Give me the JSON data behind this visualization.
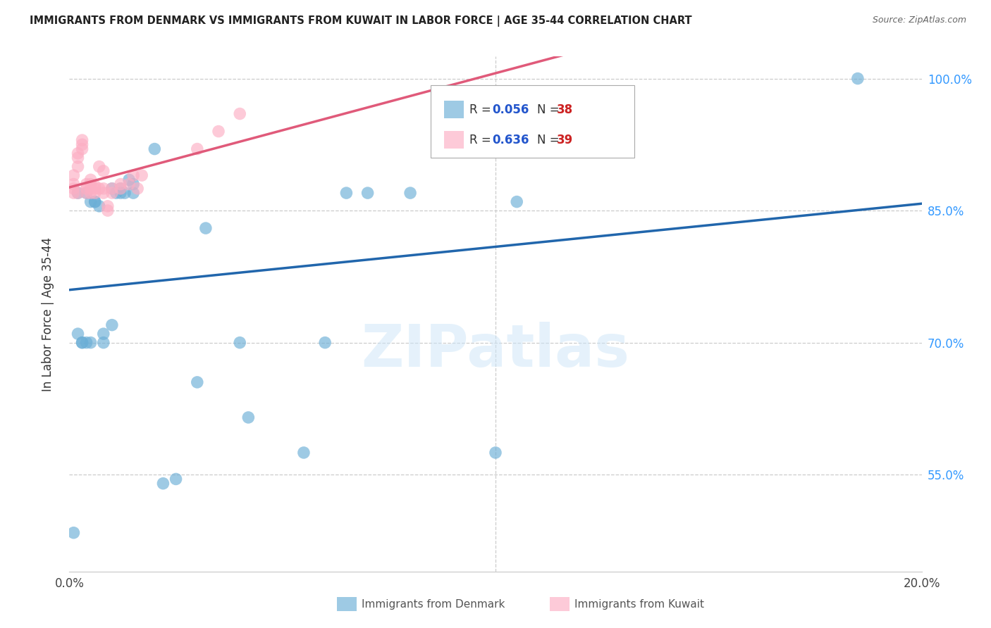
{
  "title": "IMMIGRANTS FROM DENMARK VS IMMIGRANTS FROM KUWAIT IN LABOR FORCE | AGE 35-44 CORRELATION CHART",
  "source": "Source: ZipAtlas.com",
  "ylabel": "In Labor Force | Age 35-44",
  "xmin": 0.0,
  "xmax": 0.2,
  "ymin": 0.44,
  "ymax": 1.025,
  "ytick_vals": [
    0.55,
    0.7,
    0.85,
    1.0
  ],
  "ytick_labels": [
    "55.0%",
    "70.0%",
    "85.0%",
    "100.0%"
  ],
  "watermark": "ZIPatlas",
  "legend_dk_R": "0.056",
  "legend_dk_N": "38",
  "legend_kw_R": "0.636",
  "legend_kw_N": "39",
  "denmark_color": "#6baed6",
  "kuwait_color": "#fcaec3",
  "denmark_line_color": "#2166ac",
  "kuwait_line_color": "#e05a7a",
  "legend_R_color": "#2255cc",
  "legend_N_color": "#cc2222",
  "denmark_x": [
    0.001,
    0.002,
    0.002,
    0.003,
    0.003,
    0.004,
    0.004,
    0.005,
    0.005,
    0.006,
    0.006,
    0.007,
    0.008,
    0.008,
    0.01,
    0.01,
    0.011,
    0.012,
    0.012,
    0.013,
    0.014,
    0.015,
    0.015,
    0.02,
    0.022,
    0.025,
    0.03,
    0.032,
    0.04,
    0.042,
    0.055,
    0.06,
    0.065,
    0.07,
    0.08,
    0.1,
    0.105,
    0.185
  ],
  "denmark_y": [
    0.484,
    0.87,
    0.71,
    0.7,
    0.7,
    0.87,
    0.7,
    0.86,
    0.7,
    0.86,
    0.86,
    0.855,
    0.7,
    0.71,
    0.875,
    0.72,
    0.87,
    0.87,
    0.875,
    0.87,
    0.885,
    0.87,
    0.88,
    0.92,
    0.54,
    0.545,
    0.655,
    0.83,
    0.7,
    0.615,
    0.575,
    0.7,
    0.87,
    0.87,
    0.87,
    0.575,
    0.86,
    1.0
  ],
  "kuwait_x": [
    0.001,
    0.001,
    0.001,
    0.001,
    0.002,
    0.002,
    0.002,
    0.002,
    0.003,
    0.003,
    0.003,
    0.004,
    0.004,
    0.004,
    0.005,
    0.005,
    0.005,
    0.005,
    0.006,
    0.006,
    0.006,
    0.007,
    0.007,
    0.008,
    0.008,
    0.008,
    0.009,
    0.009,
    0.01,
    0.01,
    0.012,
    0.012,
    0.014,
    0.015,
    0.016,
    0.017,
    0.03,
    0.035,
    0.04
  ],
  "kuwait_y": [
    0.87,
    0.875,
    0.88,
    0.89,
    0.9,
    0.91,
    0.915,
    0.87,
    0.92,
    0.925,
    0.93,
    0.87,
    0.875,
    0.88,
    0.875,
    0.87,
    0.88,
    0.885,
    0.875,
    0.87,
    0.878,
    0.9,
    0.875,
    0.895,
    0.87,
    0.875,
    0.85,
    0.855,
    0.87,
    0.875,
    0.875,
    0.88,
    0.88,
    0.89,
    0.875,
    0.89,
    0.92,
    0.94,
    0.96
  ]
}
